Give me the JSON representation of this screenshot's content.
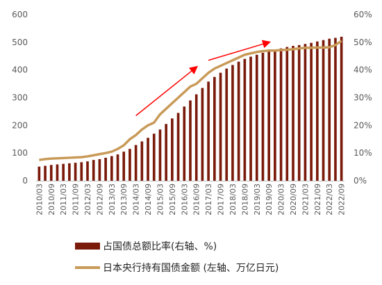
{
  "chart_data": {
    "type": "bar+line",
    "categories": [
      "2010/03",
      "2010/06",
      "2010/09",
      "2010/12",
      "2011/03",
      "2011/06",
      "2011/09",
      "2011/12",
      "2012/03",
      "2012/06",
      "2012/09",
      "2012/12",
      "2013/03",
      "2013/06",
      "2013/09",
      "2013/12",
      "2014/03",
      "2014/06",
      "2014/09",
      "2014/12",
      "2015/03",
      "2015/06",
      "2015/09",
      "2015/12",
      "2016/03",
      "2016/06",
      "2016/09",
      "2016/12",
      "2017/03",
      "2017/06",
      "2017/09",
      "2017/12",
      "2018/03",
      "2018/06",
      "2018/09",
      "2018/12",
      "2019/03",
      "2019/06",
      "2019/09",
      "2019/12",
      "2020/03",
      "2020/06",
      "2020/09",
      "2020/12",
      "2021/03",
      "2021/06",
      "2021/09",
      "2021/12",
      "2022/03",
      "2022/06",
      "2022/09"
    ],
    "xticks": [
      "2010/03",
      "2010/09",
      "2011/03",
      "2011/09",
      "2012/03",
      "2012/09",
      "2013/03",
      "2013/09",
      "2014/03",
      "2014/09",
      "2015/03",
      "2015/09",
      "2016/03",
      "2016/09",
      "2017/03",
      "2017/09",
      "2018/03",
      "2018/09",
      "2019/03",
      "2019/09",
      "2020/03",
      "2020/09",
      "2021/03",
      "2021/09",
      "2022/03",
      "2022/09"
    ],
    "series": [
      {
        "name": "占国债总额比率(右轴、%)",
        "type": "bar",
        "axis": "right",
        "color": "#7a1a0a",
        "values": [
          5.1,
          5.4,
          5.7,
          5.9,
          6.1,
          6.3,
          6.5,
          6.7,
          7.0,
          7.5,
          7.8,
          8.3,
          8.9,
          9.5,
          10.5,
          11.5,
          12.9,
          14.2,
          15.5,
          17.0,
          18.5,
          20.5,
          22.5,
          24.5,
          26.8,
          29.0,
          31.2,
          33.5,
          35.8,
          37.5,
          39.0,
          40.5,
          41.8,
          43.0,
          44.0,
          44.8,
          45.5,
          46.2,
          46.8,
          47.3,
          47.8,
          48.3,
          48.7,
          49.0,
          49.4,
          49.8,
          50.3,
          50.8,
          51.3,
          51.6,
          52.0
        ]
      },
      {
        "name": "日本央行持有国债金额 (左轴、万亿日元)",
        "type": "line",
        "axis": "left",
        "color": "#c89a58",
        "values": [
          75,
          78,
          80,
          81,
          82,
          83,
          84,
          85,
          88,
          92,
          96,
          100,
          105,
          115,
          128,
          150,
          165,
          185,
          200,
          210,
          240,
          260,
          280,
          300,
          320,
          340,
          350,
          370,
          390,
          405,
          415,
          425,
          435,
          445,
          455,
          460,
          465,
          468,
          470,
          470,
          472,
          473,
          475,
          478,
          480,
          480,
          481,
          481,
          482,
          490,
          505
        ]
      }
    ],
    "left_axis": {
      "min": 0,
      "max": 600,
      "ticks": [
        0,
        100,
        200,
        300,
        400,
        500,
        600
      ]
    },
    "right_axis": {
      "min": 0,
      "max": 60,
      "ticks": [
        "0%",
        "10%",
        "20%",
        "30%",
        "40%",
        "50%",
        "60%"
      ]
    },
    "annotations": [
      {
        "type": "arrow",
        "color": "#ff0000",
        "from": {
          "x": "2014/03",
          "y": 235
        },
        "to": {
          "x": "2016/09",
          "y": 410
        }
      },
      {
        "type": "arrow",
        "color": "#ff0000",
        "from": {
          "x": "2017/03",
          "y": 435
        },
        "to": {
          "x": "2019/09",
          "y": 500
        }
      }
    ],
    "legend_position": "bottom",
    "grid": false
  }
}
